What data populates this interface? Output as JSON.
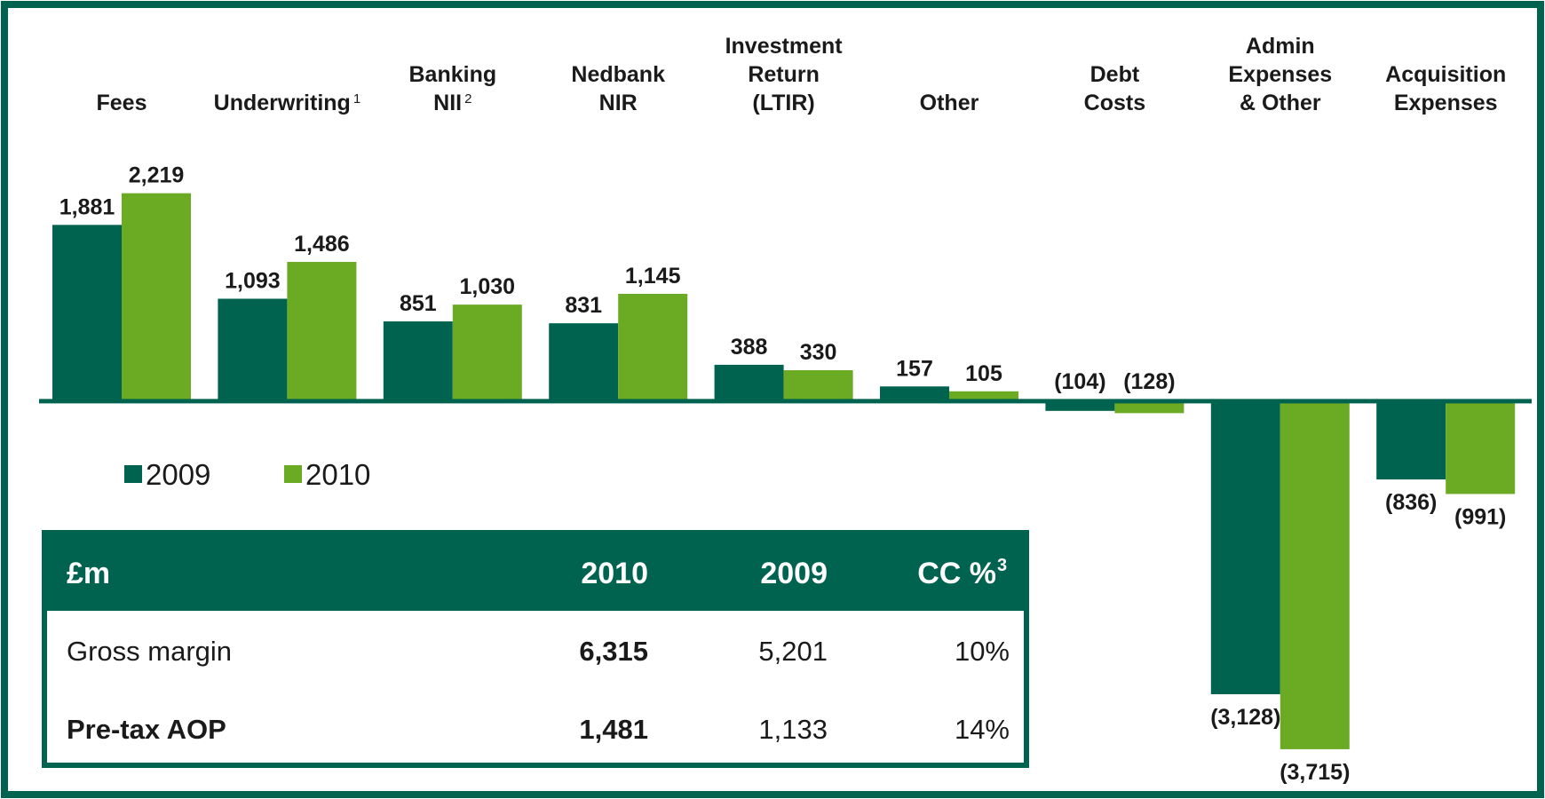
{
  "chart_data": {
    "type": "bar",
    "categories": [
      [
        "Fees"
      ],
      [
        "Underwriting"
      ],
      [
        "Banking",
        "NII"
      ],
      [
        "Nedbank",
        "NIR"
      ],
      [
        "Investment",
        "Return",
        "(LTIR)"
      ],
      [
        "Other"
      ],
      [
        "Debt",
        "Costs"
      ],
      [
        "Admin",
        "Expenses",
        "& Other"
      ],
      [
        "Acquisition",
        "Expenses"
      ]
    ],
    "category_notes": [
      null,
      "1",
      "2",
      null,
      null,
      null,
      null,
      null,
      null
    ],
    "series": [
      {
        "name": "2009",
        "color": "#00634f",
        "values": [
          1881,
          1093,
          851,
          831,
          388,
          157,
          -104,
          -3128,
          -836
        ],
        "value_labels": [
          "1,881",
          "1,093",
          "851",
          "831",
          "388",
          "157",
          "(104)",
          "(3,128)",
          "(836)"
        ]
      },
      {
        "name": "2010",
        "color": "#6aab23",
        "values": [
          2219,
          1486,
          1030,
          1145,
          330,
          105,
          -128,
          -3715,
          -991
        ],
        "value_labels": [
          "2,219",
          "1,486",
          "1,030",
          "1,145",
          "330",
          "105",
          "(128)",
          "(3,715)",
          "(991)"
        ]
      }
    ],
    "ylim": [
      -4000,
      2500
    ]
  },
  "table": {
    "header": [
      "£m",
      "2010",
      "2009",
      "CC %"
    ],
    "header_note": "3",
    "rows": [
      [
        "Gross margin",
        "6,315",
        "5,201",
        "10%"
      ],
      [
        "Pre-tax AOP",
        "1,481",
        "1,133",
        "14%"
      ]
    ]
  }
}
